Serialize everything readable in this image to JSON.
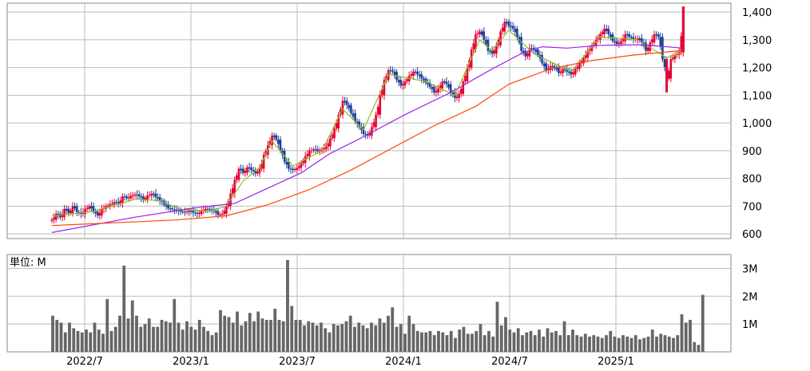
{
  "chart_data": [
    {
      "type": "candlestick",
      "title": "",
      "price_axis": {
        "position": "right",
        "ylim": [
          583,
          1432
        ],
        "ticks": [
          600,
          700,
          800,
          900,
          1000,
          1100,
          1200,
          1300,
          1400
        ],
        "tick_labels": [
          "600",
          "700",
          "800",
          "900",
          "1,000",
          "1,100",
          "1,200",
          "1,300",
          "1,400"
        ]
      },
      "x_axis": {
        "categories": [
          "2022/7",
          "2023/1",
          "2023/7",
          "2024/1",
          "2024/7",
          "2025/1"
        ],
        "range_start": "2022/5"
      },
      "grid": true,
      "colors": {
        "up": "#e60033",
        "down": "#1a3f9a",
        "ma_short": "#8fbc1f",
        "ma_mid": "#a020f0",
        "ma_long": "#ff4500"
      },
      "series": [
        {
          "values": [
            {
              "x": 0,
              "c": 651
            },
            {
              "x": 2,
              "c": 672
            },
            {
              "x": 4,
              "c": 660
            },
            {
              "x": 6,
              "c": 690
            },
            {
              "x": 8,
              "c": 675
            },
            {
              "x": 10,
              "c": 700
            },
            {
              "x": 12,
              "c": 678
            },
            {
              "x": 14,
              "c": 672
            },
            {
              "x": 16,
              "c": 690
            },
            {
              "x": 18,
              "c": 700
            },
            {
              "x": 20,
              "c": 680
            },
            {
              "x": 22,
              "c": 666
            },
            {
              "x": 24,
              "c": 690
            },
            {
              "x": 26,
              "c": 700
            },
            {
              "x": 28,
              "c": 706
            },
            {
              "x": 30,
              "c": 715
            },
            {
              "x": 32,
              "c": 710
            },
            {
              "x": 34,
              "c": 735
            },
            {
              "x": 36,
              "c": 728
            },
            {
              "x": 38,
              "c": 738
            },
            {
              "x": 40,
              "c": 742
            },
            {
              "x": 42,
              "c": 735
            },
            {
              "x": 44,
              "c": 724
            },
            {
              "x": 46,
              "c": 738
            },
            {
              "x": 48,
              "c": 745
            },
            {
              "x": 50,
              "c": 732
            },
            {
              "x": 52,
              "c": 720
            },
            {
              "x": 54,
              "c": 705
            },
            {
              "x": 56,
              "c": 692
            },
            {
              "x": 58,
              "c": 688
            },
            {
              "x": 60,
              "c": 685
            },
            {
              "x": 62,
              "c": 680
            },
            {
              "x": 64,
              "c": 678
            },
            {
              "x": 66,
              "c": 683
            },
            {
              "x": 68,
              "c": 676
            },
            {
              "x": 70,
              "c": 672
            },
            {
              "x": 72,
              "c": 684
            },
            {
              "x": 74,
              "c": 690
            },
            {
              "x": 76,
              "c": 688
            },
            {
              "x": 78,
              "c": 682
            },
            {
              "x": 80,
              "c": 668
            },
            {
              "x": 82,
              "c": 672
            },
            {
              "x": 84,
              "c": 700
            },
            {
              "x": 86,
              "c": 745
            },
            {
              "x": 88,
              "c": 795
            },
            {
              "x": 90,
              "c": 835
            },
            {
              "x": 92,
              "c": 820
            },
            {
              "x": 94,
              "c": 840
            },
            {
              "x": 96,
              "c": 830
            },
            {
              "x": 98,
              "c": 818
            },
            {
              "x": 100,
              "c": 835
            },
            {
              "x": 102,
              "c": 885
            },
            {
              "x": 104,
              "c": 920
            },
            {
              "x": 106,
              "c": 955
            },
            {
              "x": 108,
              "c": 940
            },
            {
              "x": 110,
              "c": 900
            },
            {
              "x": 112,
              "c": 860
            },
            {
              "x": 114,
              "c": 835
            },
            {
              "x": 116,
              "c": 830
            },
            {
              "x": 118,
              "c": 838
            },
            {
              "x": 120,
              "c": 855
            },
            {
              "x": 122,
              "c": 880
            },
            {
              "x": 124,
              "c": 900
            },
            {
              "x": 126,
              "c": 905
            },
            {
              "x": 128,
              "c": 898
            },
            {
              "x": 130,
              "c": 905
            },
            {
              "x": 132,
              "c": 915
            },
            {
              "x": 134,
              "c": 945
            },
            {
              "x": 136,
              "c": 980
            },
            {
              "x": 138,
              "c": 1030
            },
            {
              "x": 140,
              "c": 1080
            },
            {
              "x": 142,
              "c": 1065
            },
            {
              "x": 144,
              "c": 1035
            },
            {
              "x": 146,
              "c": 1005
            },
            {
              "x": 148,
              "c": 985
            },
            {
              "x": 150,
              "c": 960
            },
            {
              "x": 152,
              "c": 955
            },
            {
              "x": 154,
              "c": 985
            },
            {
              "x": 156,
              "c": 1030
            },
            {
              "x": 158,
              "c": 1100
            },
            {
              "x": 160,
              "c": 1155
            },
            {
              "x": 162,
              "c": 1190
            },
            {
              "x": 164,
              "c": 1185
            },
            {
              "x": 166,
              "c": 1155
            },
            {
              "x": 168,
              "c": 1135
            },
            {
              "x": 170,
              "c": 1150
            },
            {
              "x": 172,
              "c": 1170
            },
            {
              "x": 174,
              "c": 1185
            },
            {
              "x": 176,
              "c": 1175
            },
            {
              "x": 178,
              "c": 1160
            },
            {
              "x": 180,
              "c": 1145
            },
            {
              "x": 182,
              "c": 1130
            },
            {
              "x": 184,
              "c": 1110
            },
            {
              "x": 186,
              "c": 1125
            },
            {
              "x": 188,
              "c": 1150
            },
            {
              "x": 190,
              "c": 1140
            },
            {
              "x": 192,
              "c": 1110
            },
            {
              "x": 194,
              "c": 1090
            },
            {
              "x": 196,
              "c": 1105
            },
            {
              "x": 198,
              "c": 1150
            },
            {
              "x": 200,
              "c": 1200
            },
            {
              "x": 202,
              "c": 1265
            },
            {
              "x": 204,
              "c": 1320
            },
            {
              "x": 206,
              "c": 1330
            },
            {
              "x": 208,
              "c": 1300
            },
            {
              "x": 210,
              "c": 1260
            },
            {
              "x": 212,
              "c": 1250
            },
            {
              "x": 214,
              "c": 1280
            },
            {
              "x": 216,
              "c": 1330
            },
            {
              "x": 218,
              "c": 1365
            },
            {
              "x": 220,
              "c": 1350
            },
            {
              "x": 222,
              "c": 1340
            },
            {
              "x": 224,
              "c": 1310
            },
            {
              "x": 226,
              "c": 1260
            },
            {
              "x": 228,
              "c": 1240
            },
            {
              "x": 230,
              "c": 1270
            },
            {
              "x": 232,
              "c": 1265
            },
            {
              "x": 234,
              "c": 1245
            },
            {
              "x": 236,
              "c": 1215
            },
            {
              "x": 238,
              "c": 1190
            },
            {
              "x": 240,
              "c": 1205
            },
            {
              "x": 242,
              "c": 1200
            },
            {
              "x": 244,
              "c": 1180
            },
            {
              "x": 246,
              "c": 1195
            },
            {
              "x": 248,
              "c": 1185
            },
            {
              "x": 250,
              "c": 1175
            },
            {
              "x": 252,
              "c": 1195
            },
            {
              "x": 254,
              "c": 1215
            },
            {
              "x": 256,
              "c": 1235
            },
            {
              "x": 258,
              "c": 1260
            },
            {
              "x": 260,
              "c": 1280
            },
            {
              "x": 262,
              "c": 1300
            },
            {
              "x": 264,
              "c": 1320
            },
            {
              "x": 266,
              "c": 1340
            },
            {
              "x": 268,
              "c": 1320
            },
            {
              "x": 270,
              "c": 1295
            },
            {
              "x": 272,
              "c": 1285
            },
            {
              "x": 274,
              "c": 1295
            },
            {
              "x": 276,
              "c": 1320
            },
            {
              "x": 278,
              "c": 1310
            },
            {
              "x": 280,
              "c": 1300
            },
            {
              "x": 282,
              "c": 1305
            },
            {
              "x": 284,
              "c": 1290
            },
            {
              "x": 286,
              "c": 1260
            },
            {
              "x": 288,
              "c": 1290
            },
            {
              "x": 290,
              "c": 1320
            },
            {
              "x": 292,
              "c": 1310
            },
            {
              "x": 294,
              "c": 1230
            },
            {
              "x": 296,
              "c": 1160
            },
            {
              "x": 298,
              "c": 1230
            },
            {
              "x": 300,
              "c": 1245
            },
            {
              "x": 302,
              "c": 1255
            },
            {
              "x": 304,
              "c": 1400
            }
          ]
        },
        {
          "values": [
            {
              "x": 0,
              "v": 665
            },
            {
              "x": 20,
              "v": 680
            },
            {
              "x": 40,
              "v": 725
            },
            {
              "x": 52,
              "v": 720
            },
            {
              "x": 62,
              "v": 688
            },
            {
              "x": 76,
              "v": 682
            },
            {
              "x": 84,
              "v": 700
            },
            {
              "x": 92,
              "v": 790
            },
            {
              "x": 100,
              "v": 840
            },
            {
              "x": 106,
              "v": 935
            },
            {
              "x": 116,
              "v": 845
            },
            {
              "x": 130,
              "v": 900
            },
            {
              "x": 140,
              "v": 1050
            },
            {
              "x": 150,
              "v": 975
            },
            {
              "x": 162,
              "v": 1175
            },
            {
              "x": 180,
              "v": 1150
            },
            {
              "x": 194,
              "v": 1100
            },
            {
              "x": 206,
              "v": 1300
            },
            {
              "x": 212,
              "v": 1260
            },
            {
              "x": 220,
              "v": 1335
            },
            {
              "x": 232,
              "v": 1250
            },
            {
              "x": 250,
              "v": 1185
            },
            {
              "x": 264,
              "v": 1310
            },
            {
              "x": 282,
              "v": 1300
            },
            {
              "x": 296,
              "v": 1235
            },
            {
              "x": 304,
              "v": 1255
            }
          ]
        },
        {
          "values": [
            {
              "x": 0,
              "v": 605
            },
            {
              "x": 40,
              "v": 660
            },
            {
              "x": 70,
              "v": 695
            },
            {
              "x": 88,
              "v": 710
            },
            {
              "x": 104,
              "v": 765
            },
            {
              "x": 120,
              "v": 820
            },
            {
              "x": 134,
              "v": 890
            },
            {
              "x": 150,
              "v": 950
            },
            {
              "x": 170,
              "v": 1030
            },
            {
              "x": 192,
              "v": 1110
            },
            {
              "x": 212,
              "v": 1195
            },
            {
              "x": 226,
              "v": 1250
            },
            {
              "x": 236,
              "v": 1275
            },
            {
              "x": 248,
              "v": 1270
            },
            {
              "x": 264,
              "v": 1280
            },
            {
              "x": 284,
              "v": 1282
            },
            {
              "x": 304,
              "v": 1270
            }
          ]
        },
        {
          "values": [
            {
              "x": 0,
              "v": 630
            },
            {
              "x": 30,
              "v": 640
            },
            {
              "x": 60,
              "v": 650
            },
            {
              "x": 84,
              "v": 665
            },
            {
              "x": 104,
              "v": 705
            },
            {
              "x": 124,
              "v": 760
            },
            {
              "x": 144,
              "v": 830
            },
            {
              "x": 164,
              "v": 910
            },
            {
              "x": 184,
              "v": 990
            },
            {
              "x": 204,
              "v": 1060
            },
            {
              "x": 220,
              "v": 1140
            },
            {
              "x": 240,
              "v": 1195
            },
            {
              "x": 260,
              "v": 1225
            },
            {
              "x": 280,
              "v": 1245
            },
            {
              "x": 304,
              "v": 1262
            }
          ]
        }
      ]
    },
    {
      "type": "bar",
      "label": "単位: M",
      "ylim": [
        0,
        3.5
      ],
      "ticks": [
        1,
        2,
        3
      ],
      "tick_labels": [
        "1M",
        "2M",
        "3M"
      ],
      "color": "#666666",
      "values": [
        1.3,
        1.15,
        1.05,
        0.7,
        1.05,
        0.85,
        0.75,
        0.7,
        0.8,
        0.7,
        1.05,
        0.8,
        0.65,
        1.9,
        0.75,
        0.9,
        1.3,
        3.1,
        1.2,
        1.85,
        1.3,
        0.9,
        1.0,
        1.2,
        0.9,
        0.9,
        1.15,
        1.1,
        1.05,
        1.9,
        1.05,
        0.8,
        1.1,
        0.9,
        0.8,
        1.15,
        0.9,
        0.75,
        0.6,
        0.7,
        1.5,
        1.3,
        1.25,
        1.05,
        1.45,
        0.95,
        1.1,
        1.4,
        1.1,
        1.45,
        1.2,
        1.15,
        1.15,
        1.55,
        1.15,
        1.1,
        3.3,
        1.65,
        1.15,
        1.15,
        0.95,
        1.1,
        1.05,
        0.95,
        1.05,
        0.85,
        0.7,
        1.0,
        0.95,
        1.0,
        1.1,
        1.3,
        0.9,
        1.05,
        0.95,
        0.85,
        1.05,
        0.95,
        1.2,
        1.05,
        1.3,
        1.6,
        0.9,
        1.0,
        0.65,
        1.3,
        1.0,
        0.75,
        0.7,
        0.7,
        0.75,
        0.6,
        0.75,
        0.7,
        0.6,
        0.75,
        0.5,
        0.8,
        0.9,
        0.65,
        0.65,
        0.75,
        1.0,
        0.6,
        0.75,
        0.55,
        1.8,
        0.95,
        1.25,
        0.8,
        0.7,
        0.85,
        0.6,
        0.7,
        0.75,
        0.6,
        0.8,
        0.55,
        0.85,
        0.7,
        0.75,
        0.6,
        1.1,
        0.6,
        0.8,
        0.6,
        0.55,
        0.65,
        0.55,
        0.6,
        0.55,
        0.5,
        0.6,
        0.75,
        0.55,
        0.5,
        0.6,
        0.55,
        0.5,
        0.6,
        0.45,
        0.5,
        0.55,
        0.8,
        0.55,
        0.65,
        0.6,
        0.55,
        0.5,
        0.6,
        1.35,
        1.05,
        1.15,
        0.35,
        0.25,
        2.05
      ]
    }
  ]
}
